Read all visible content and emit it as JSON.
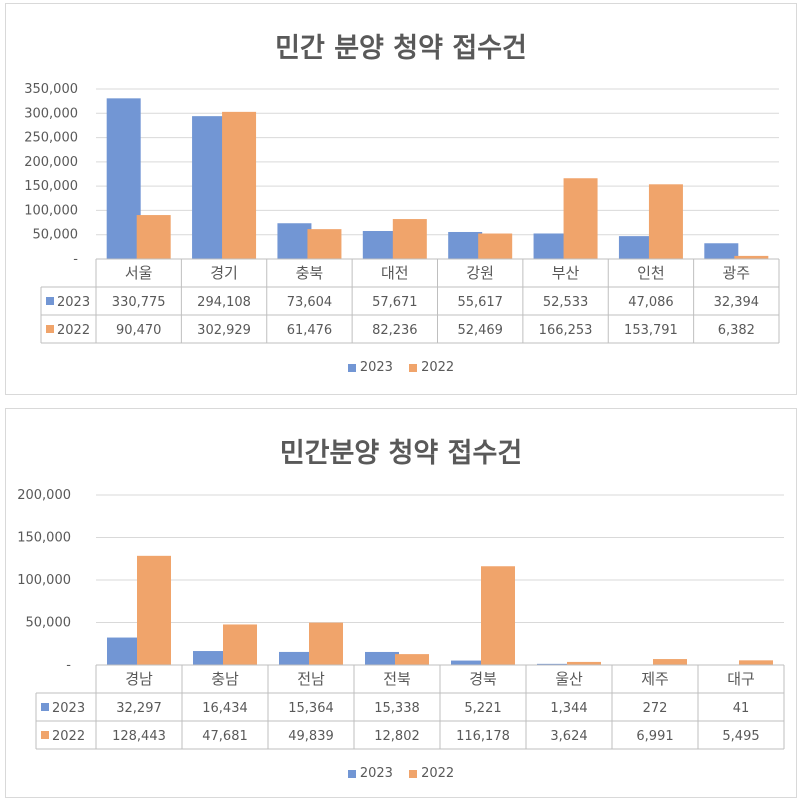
{
  "colors": {
    "series_2023": "#7296d4",
    "series_2022": "#f0a46b",
    "axis_text": "#595959",
    "grid": "#d9d9d9"
  },
  "chart_data": [
    {
      "type": "bar",
      "title": "민간 분양 청약 접수건",
      "categories": [
        "서울",
        "경기",
        "충북",
        "대전",
        "강원",
        "부산",
        "인천",
        "광주"
      ],
      "series": [
        {
          "name": "2023",
          "values": [
            330775,
            294108,
            73604,
            57671,
            55617,
            52533,
            47086,
            32394
          ],
          "labels": [
            "330,775",
            "294,108",
            "73,604",
            "57,671",
            "55,617",
            "52,533",
            "47,086",
            "32,394"
          ]
        },
        {
          "name": "2022",
          "values": [
            90470,
            302929,
            61476,
            82236,
            52469,
            166253,
            153791,
            6382
          ],
          "labels": [
            "90,470",
            "302,929",
            "61,476",
            "82,236",
            "52,469",
            "166,253",
            "153,791",
            "6,382"
          ]
        }
      ],
      "ylim": [
        0,
        350000
      ],
      "yticks": [
        0,
        50000,
        100000,
        150000,
        200000,
        250000,
        300000,
        350000
      ],
      "ytick_labels": [
        "-",
        "50,000",
        "100,000",
        "150,000",
        "200,000",
        "250,000",
        "300,000",
        "350,000"
      ],
      "grid": true,
      "legend": "bottom",
      "data_table": true
    },
    {
      "type": "bar",
      "title": "민간분양 청약 접수건",
      "categories": [
        "경남",
        "충남",
        "전남",
        "전북",
        "경북",
        "울산",
        "제주",
        "대구"
      ],
      "series": [
        {
          "name": "2023",
          "values": [
            32297,
            16434,
            15364,
            15338,
            5221,
            1344,
            272,
            41
          ],
          "labels": [
            "32,297",
            "16,434",
            "15,364",
            "15,338",
            "5,221",
            "1,344",
            "272",
            "41"
          ]
        },
        {
          "name": "2022",
          "values": [
            128443,
            47681,
            49839,
            12802,
            116178,
            3624,
            6991,
            5495
          ],
          "labels": [
            "128,443",
            "47,681",
            "49,839",
            "12,802",
            "116,178",
            "3,624",
            "6,991",
            "5,495"
          ]
        }
      ],
      "ylim": [
        0,
        200000
      ],
      "yticks": [
        0,
        50000,
        100000,
        150000,
        200000
      ],
      "ytick_labels": [
        "-",
        "50,000",
        "100,000",
        "150,000",
        "200,000"
      ],
      "grid": true,
      "legend": "bottom",
      "data_table": true
    }
  ]
}
